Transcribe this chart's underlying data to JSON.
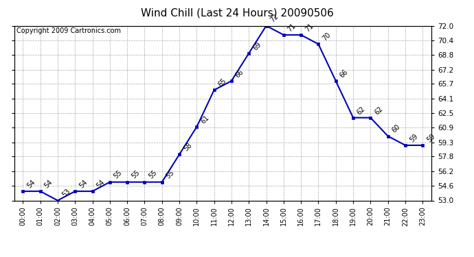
{
  "title": "Wind Chill (Last 24 Hours) 20090506",
  "copyright": "Copyright 2009 Cartronics.com",
  "hours": [
    "00:00",
    "01:00",
    "02:00",
    "03:00",
    "04:00",
    "05:00",
    "06:00",
    "07:00",
    "08:00",
    "09:00",
    "10:00",
    "11:00",
    "12:00",
    "13:00",
    "14:00",
    "15:00",
    "16:00",
    "17:00",
    "18:00",
    "19:00",
    "20:00",
    "21:00",
    "22:00",
    "23:00"
  ],
  "values": [
    54,
    54,
    53,
    54,
    54,
    55,
    55,
    55,
    55,
    58,
    61,
    65,
    66,
    69,
    72,
    71,
    71,
    70,
    66,
    62,
    62,
    60,
    59,
    59
  ],
  "ylim": [
    53.0,
    72.0
  ],
  "yticks": [
    53.0,
    54.6,
    56.2,
    57.8,
    59.3,
    60.9,
    62.5,
    64.1,
    65.7,
    67.2,
    68.8,
    70.4,
    72.0
  ],
  "line_color": "#0000bb",
  "marker_color": "#0000bb",
  "background_color": "#ffffff",
  "grid_color": "#aaaaaa",
  "title_fontsize": 11,
  "copyright_fontsize": 7,
  "label_fontsize": 7,
  "tick_fontsize": 7,
  "ytick_fontsize": 7.5
}
